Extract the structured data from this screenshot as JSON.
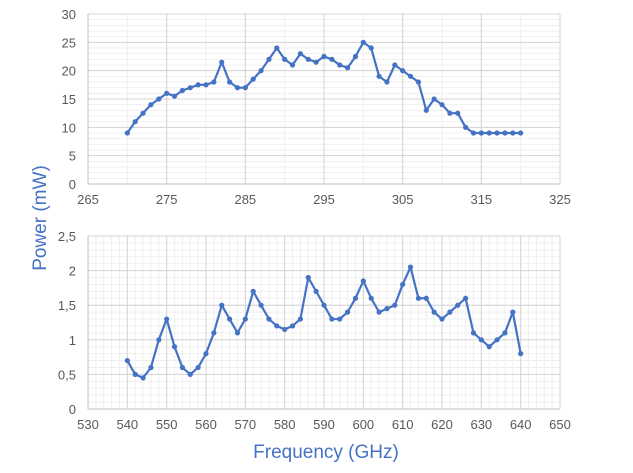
{
  "figure": {
    "shared_ylabel": "Power (mW)",
    "shared_xlabel": "Frequency (GHz)"
  },
  "chart_data": [
    {
      "type": "line",
      "title": "",
      "xlabel": "",
      "ylabel": "Power (mW)",
      "xlim": [
        265,
        325
      ],
      "ylim": [
        0,
        30
      ],
      "xticks": [
        265,
        275,
        285,
        295,
        305,
        315,
        325
      ],
      "yticks": [
        0,
        5,
        10,
        15,
        20,
        25,
        30
      ],
      "xtick_labels": [
        "265",
        "275",
        "285",
        "295",
        "305",
        "315",
        "325"
      ],
      "ytick_labels": [
        "0",
        "5",
        "10",
        "15",
        "20",
        "25",
        "30"
      ],
      "grid": true,
      "legend": "none",
      "line_color": "#4472c4",
      "series": [
        {
          "x": [
            270,
            271,
            272,
            273,
            274,
            275,
            276,
            277,
            278,
            279,
            280,
            281,
            282,
            283,
            284,
            285,
            286,
            287,
            288,
            289,
            290,
            291,
            292,
            293,
            294,
            295,
            296,
            297,
            298,
            299,
            300,
            301,
            302,
            303,
            304,
            305,
            306,
            307,
            308,
            309,
            310,
            311,
            312,
            313,
            314,
            315,
            316,
            317,
            318,
            319,
            320
          ],
          "y": [
            9,
            11,
            12.5,
            14,
            15,
            16,
            15.5,
            16.5,
            17,
            17.5,
            17.5,
            18,
            21.5,
            18,
            17,
            17,
            18.5,
            20,
            22,
            24,
            22,
            21,
            23,
            22,
            21.5,
            22.5,
            22,
            21,
            20.5,
            22.5,
            25,
            24,
            19,
            18,
            21,
            20,
            19,
            18,
            13,
            15,
            14,
            12.5,
            12.5,
            10,
            9,
            9,
            9,
            9,
            9,
            9,
            9
          ]
        }
      ]
    },
    {
      "type": "line",
      "title": "",
      "xlabel": "Frequency (GHz)",
      "ylabel": "Power (mW)",
      "xlim": [
        530,
        650
      ],
      "ylim": [
        0,
        2.5
      ],
      "xticks": [
        530,
        540,
        550,
        560,
        570,
        580,
        590,
        600,
        610,
        620,
        630,
        640,
        650
      ],
      "yticks": [
        0,
        0.5,
        1,
        1.5,
        2,
        2.5
      ],
      "xtick_labels": [
        "530",
        "540",
        "550",
        "560",
        "570",
        "580",
        "590",
        "600",
        "610",
        "620",
        "630",
        "640",
        "650"
      ],
      "ytick_labels": [
        "0",
        "0,5",
        "1",
        "1,5",
        "2",
        "2,5"
      ],
      "grid": true,
      "legend": "none",
      "line_color": "#4472c4",
      "series": [
        {
          "x": [
            540,
            542,
            544,
            546,
            548,
            550,
            552,
            554,
            556,
            558,
            560,
            562,
            564,
            566,
            568,
            570,
            572,
            574,
            576,
            578,
            580,
            582,
            584,
            586,
            588,
            590,
            592,
            594,
            596,
            598,
            600,
            602,
            604,
            606,
            608,
            610,
            612,
            614,
            616,
            618,
            620,
            622,
            624,
            626,
            628,
            630,
            632,
            634,
            636,
            638,
            640
          ],
          "y": [
            0.7,
            0.5,
            0.45,
            0.6,
            1.0,
            1.3,
            0.9,
            0.6,
            0.5,
            0.6,
            0.8,
            1.1,
            1.5,
            1.3,
            1.1,
            1.3,
            1.7,
            1.5,
            1.3,
            1.2,
            1.15,
            1.2,
            1.3,
            1.9,
            1.7,
            1.5,
            1.3,
            1.3,
            1.4,
            1.6,
            1.85,
            1.6,
            1.4,
            1.45,
            1.5,
            1.8,
            2.05,
            1.6,
            1.6,
            1.4,
            1.3,
            1.4,
            1.5,
            1.6,
            1.1,
            1.0,
            0.9,
            1.0,
            1.1,
            1.4,
            0.8
          ]
        }
      ]
    }
  ]
}
